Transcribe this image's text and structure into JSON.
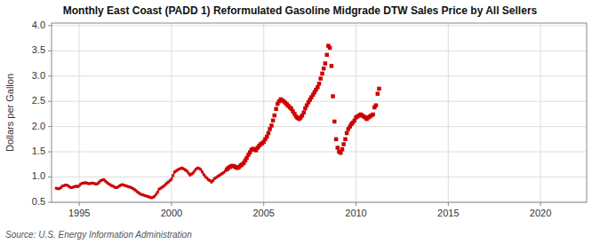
{
  "chart_data": {
    "type": "line",
    "title": "Monthly East Coast (PADD 1) Reformulated Gasoline Midgrade DTW Sales Price by All Sellers",
    "ylabel": "Dollars per Gallon",
    "source": "Source: U.S. Energy Information Administration",
    "xlim": [
      1993.5,
      2022.5
    ],
    "ylim": [
      0.5,
      4.05
    ],
    "xticks": [
      1995,
      2000,
      2005,
      2010,
      2015,
      2020
    ],
    "yticks": [
      0.5,
      {
        "value": 1.0,
        "label": "1.0"
      },
      1.5,
      {
        "value": 2.0,
        "label": "2.0"
      },
      2.5,
      {
        "value": 3.0,
        "label": "3.0"
      },
      3.5,
      {
        "value": 4.0,
        "label": "4.0"
      }
    ],
    "grid": true,
    "series": [
      {
        "type": "line",
        "color": "#cc0000",
        "marker": "square",
        "line_style": "solid",
        "x": [
          1993.75,
          1993.83,
          1993.92,
          1994.0,
          1994.08,
          1994.17,
          1994.25,
          1994.33,
          1994.42,
          1994.5,
          1994.58,
          1994.67,
          1994.75,
          1994.83,
          1994.92,
          1995.0,
          1995.08,
          1995.17,
          1995.25,
          1995.33,
          1995.42,
          1995.5,
          1995.58,
          1995.67,
          1995.75,
          1995.83,
          1995.92,
          1996.0,
          1996.08,
          1996.17,
          1996.25,
          1996.33,
          1996.42,
          1996.5,
          1996.58,
          1996.67,
          1996.75,
          1996.83,
          1996.92,
          1997.0,
          1997.08,
          1997.17,
          1997.25,
          1997.33,
          1997.42,
          1997.5,
          1997.58,
          1997.67,
          1997.75,
          1997.83,
          1997.92,
          1998.0,
          1998.08,
          1998.17,
          1998.25,
          1998.33,
          1998.42,
          1998.5,
          1998.58,
          1998.67,
          1998.75,
          1998.83,
          1998.92,
          1999.0,
          1999.08,
          1999.17,
          1999.25,
          1999.33,
          1999.42,
          1999.5,
          1999.58,
          1999.67,
          1999.75,
          1999.83,
          1999.92,
          2000.0,
          2000.08,
          2000.17,
          2000.25,
          2000.33,
          2000.42,
          2000.5,
          2000.58,
          2000.67,
          2000.75,
          2000.83,
          2000.92,
          2001.0,
          2001.08,
          2001.17,
          2001.25,
          2001.33,
          2001.42,
          2001.5,
          2001.58,
          2001.67,
          2001.75,
          2001.83,
          2001.92,
          2002.0,
          2002.08,
          2002.17,
          2002.25,
          2002.33,
          2002.42,
          2002.5,
          2002.58,
          2002.67,
          2002.75,
          2002.83,
          2002.92
        ],
        "values": [
          0.78,
          0.77,
          0.77,
          0.79,
          0.82,
          0.83,
          0.84,
          0.84,
          0.82,
          0.8,
          0.79,
          0.8,
          0.81,
          0.82,
          0.81,
          0.83,
          0.86,
          0.88,
          0.88,
          0.89,
          0.88,
          0.87,
          0.87,
          0.88,
          0.88,
          0.87,
          0.86,
          0.87,
          0.9,
          0.93,
          0.94,
          0.95,
          0.92,
          0.89,
          0.87,
          0.85,
          0.83,
          0.82,
          0.8,
          0.79,
          0.8,
          0.82,
          0.84,
          0.85,
          0.84,
          0.83,
          0.82,
          0.81,
          0.8,
          0.79,
          0.77,
          0.75,
          0.73,
          0.7,
          0.68,
          0.66,
          0.65,
          0.64,
          0.63,
          0.62,
          0.61,
          0.6,
          0.59,
          0.6,
          0.62,
          0.66,
          0.7,
          0.76,
          0.78,
          0.8,
          0.82,
          0.85,
          0.88,
          0.9,
          0.93,
          0.96,
          1.03,
          1.1,
          1.12,
          1.14,
          1.16,
          1.17,
          1.18,
          1.16,
          1.14,
          1.12,
          1.08,
          1.04,
          1.06,
          1.08,
          1.12,
          1.16,
          1.18,
          1.17,
          1.15,
          1.1,
          1.05,
          1.01,
          0.98,
          0.95,
          0.93,
          0.9,
          0.93,
          0.97,
          0.99,
          1.01,
          1.03,
          1.05,
          1.07,
          1.09,
          1.12
        ]
      },
      {
        "type": "scatter",
        "color": "#cc0000",
        "marker": "square",
        "x": [
          2003.0,
          2003.08,
          2003.17,
          2003.25,
          2003.33,
          2003.42,
          2003.5,
          2003.58,
          2003.67,
          2003.75,
          2003.83,
          2003.92,
          2004.0,
          2004.08,
          2004.17,
          2004.25,
          2004.33,
          2004.42,
          2004.5,
          2004.58,
          2004.67,
          2004.75,
          2004.83,
          2004.92,
          2005.0,
          2005.08,
          2005.17,
          2005.25,
          2005.33,
          2005.42,
          2005.5,
          2005.58,
          2005.67,
          2005.75,
          2005.83,
          2005.92,
          2006.0,
          2006.08,
          2006.17,
          2006.25,
          2006.33,
          2006.42,
          2006.5,
          2006.58,
          2006.67,
          2006.75,
          2006.83,
          2006.92,
          2007.0,
          2007.08,
          2007.17,
          2007.25,
          2007.33,
          2007.42,
          2007.5,
          2007.58,
          2007.67,
          2007.75,
          2007.83,
          2007.92,
          2008.0,
          2008.08,
          2008.17,
          2008.25,
          2008.33,
          2008.42,
          2008.5,
          2008.58,
          2008.67,
          2008.75,
          2008.83,
          2008.92,
          2009.0,
          2009.08,
          2009.17,
          2009.25,
          2009.33,
          2009.42,
          2009.5,
          2009.58,
          2009.67,
          2009.75,
          2009.83,
          2009.92,
          2010.0,
          2010.08,
          2010.17,
          2010.25,
          2010.33,
          2010.42,
          2010.5,
          2010.58,
          2010.67,
          2010.75,
          2010.83,
          2010.92,
          2011.0,
          2011.08,
          2011.17,
          2011.25
        ],
        "values": [
          1.15,
          1.18,
          1.2,
          1.22,
          1.22,
          1.21,
          1.19,
          1.18,
          1.2,
          1.23,
          1.25,
          1.28,
          1.33,
          1.38,
          1.44,
          1.49,
          1.54,
          1.56,
          1.55,
          1.53,
          1.58,
          1.62,
          1.65,
          1.67,
          1.7,
          1.75,
          1.8,
          1.87,
          1.95,
          2.02,
          2.12,
          2.22,
          2.35,
          2.45,
          2.5,
          2.54,
          2.52,
          2.5,
          2.47,
          2.44,
          2.41,
          2.38,
          2.35,
          2.3,
          2.25,
          2.2,
          2.17,
          2.15,
          2.18,
          2.22,
          2.28,
          2.36,
          2.42,
          2.48,
          2.53,
          2.58,
          2.63,
          2.68,
          2.73,
          2.78,
          2.85,
          2.95,
          3.05,
          3.15,
          3.25,
          3.42,
          3.6,
          3.56,
          3.2,
          2.6,
          2.1,
          1.75,
          1.58,
          1.5,
          1.48,
          1.55,
          1.65,
          1.75,
          1.87,
          1.95,
          2.0,
          2.05,
          2.08,
          2.12,
          2.18,
          2.2,
          2.22,
          2.24,
          2.22,
          2.2,
          2.18,
          2.15,
          2.18,
          2.2,
          2.22,
          2.24,
          2.38,
          2.42,
          2.65,
          2.75
        ]
      }
    ]
  }
}
